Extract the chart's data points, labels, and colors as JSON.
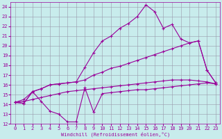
{
  "xlabel": "Windchill (Refroidissement éolien,°C)",
  "xlim": [
    -0.5,
    23.5
  ],
  "ylim": [
    12,
    24.5
  ],
  "xticks": [
    0,
    1,
    2,
    3,
    4,
    5,
    6,
    7,
    8,
    9,
    10,
    11,
    12,
    13,
    14,
    15,
    16,
    17,
    18,
    19,
    20,
    21,
    22,
    23
  ],
  "yticks": [
    12,
    13,
    14,
    15,
    16,
    17,
    18,
    19,
    20,
    21,
    22,
    23,
    24
  ],
  "bg_color": "#c8ecec",
  "line_color": "#990099",
  "grid_color": "#9999aa",
  "line1_x": [
    0,
    1,
    2,
    3,
    4,
    5,
    6,
    7,
    8,
    9,
    10,
    11,
    12,
    13,
    14,
    15,
    16,
    17,
    18,
    19,
    20,
    21,
    22,
    23
  ],
  "line1_y": [
    14.2,
    14.1,
    15.3,
    14.3,
    13.3,
    13.0,
    12.2,
    12.2,
    15.7,
    13.2,
    15.1,
    15.2,
    15.3,
    15.4,
    15.5,
    15.5,
    15.6,
    15.7,
    15.8,
    15.9,
    16.0,
    16.1,
    16.2,
    16.1
  ],
  "line2_x": [
    0,
    1,
    2,
    3,
    4,
    5,
    6,
    7,
    8,
    9,
    10,
    11,
    12,
    13,
    14,
    15,
    16,
    17,
    18,
    19,
    20,
    21,
    22,
    23
  ],
  "line2_y": [
    14.2,
    14.1,
    15.3,
    15.6,
    16.0,
    16.1,
    16.2,
    16.3,
    17.8,
    19.3,
    20.5,
    21.0,
    21.8,
    22.3,
    23.0,
    24.2,
    23.5,
    21.8,
    22.2,
    20.7,
    20.3,
    20.5,
    17.5,
    16.2
  ],
  "line3_x": [
    0,
    1,
    2,
    3,
    4,
    5,
    6,
    7,
    8,
    9,
    10,
    11,
    12,
    13,
    14,
    15,
    16,
    17,
    18,
    19,
    20,
    21,
    22,
    23
  ],
  "line3_y": [
    14.2,
    14.5,
    15.3,
    15.6,
    16.0,
    16.1,
    16.2,
    16.3,
    16.5,
    17.0,
    17.3,
    17.7,
    17.9,
    18.2,
    18.5,
    18.8,
    19.1,
    19.4,
    19.7,
    20.0,
    20.3,
    20.5,
    17.5,
    16.2
  ],
  "line4_x": [
    0,
    1,
    2,
    3,
    4,
    5,
    6,
    7,
    8,
    9,
    10,
    11,
    12,
    13,
    14,
    15,
    16,
    17,
    18,
    19,
    20,
    21,
    22,
    23
  ],
  "line4_y": [
    14.2,
    14.3,
    14.5,
    14.7,
    14.9,
    15.1,
    15.3,
    15.4,
    15.5,
    15.6,
    15.7,
    15.8,
    15.9,
    16.0,
    16.1,
    16.2,
    16.3,
    16.4,
    16.5,
    16.5,
    16.5,
    16.4,
    16.3,
    16.1
  ]
}
